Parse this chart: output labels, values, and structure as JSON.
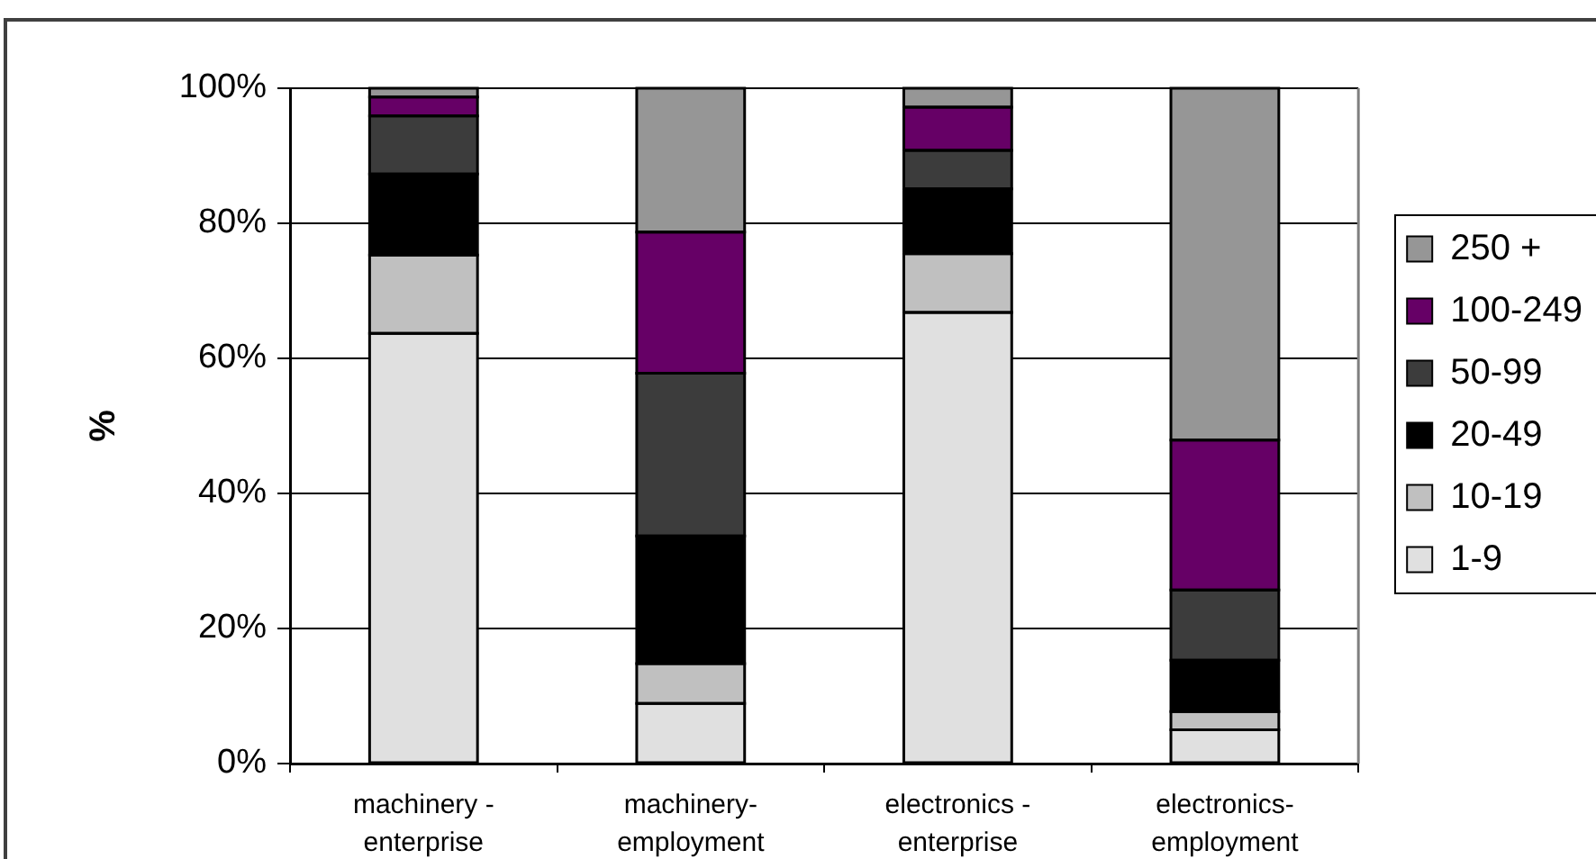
{
  "chart_data": {
    "type": "bar",
    "stacked": true,
    "categories": [
      "machinery - enterprise",
      "machinery-employment",
      "electronics - enterprise",
      "electronics-employment"
    ],
    "series": [
      {
        "name": "1-9",
        "color": "#e0e0e0",
        "values": [
          63.7,
          8.9,
          66.8,
          5
        ]
      },
      {
        "name": "10-19",
        "color": "#c0c0c0",
        "values": [
          11.6,
          5.9,
          8.7,
          2.7
        ]
      },
      {
        "name": "20-49",
        "color": "#000000",
        "values": [
          12,
          18.9,
          9.6,
          7.6
        ]
      },
      {
        "name": "50-99",
        "color": "#3c3c3c",
        "values": [
          8.6,
          24.1,
          5.7,
          10.4
        ]
      },
      {
        "name": "100-249",
        "color": "#660066",
        "values": [
          2.8,
          20.9,
          6.4,
          22.2
        ]
      },
      {
        "name": "250 +",
        "color": "#969696",
        "values": [
          1.3,
          21.3,
          2.8,
          52.1
        ]
      }
    ],
    "ylim": [
      0,
      100
    ],
    "yticks": [
      {
        "value": 0,
        "label": "0%"
      },
      {
        "value": 20,
        "label": "20%"
      },
      {
        "value": 40,
        "label": "40%"
      },
      {
        "value": 60,
        "label": "60%"
      },
      {
        "value": 80,
        "label": "80%"
      },
      {
        "value": 100,
        "label": "100%"
      }
    ],
    "ylabel": "%",
    "grid": "y",
    "legend": "right"
  }
}
